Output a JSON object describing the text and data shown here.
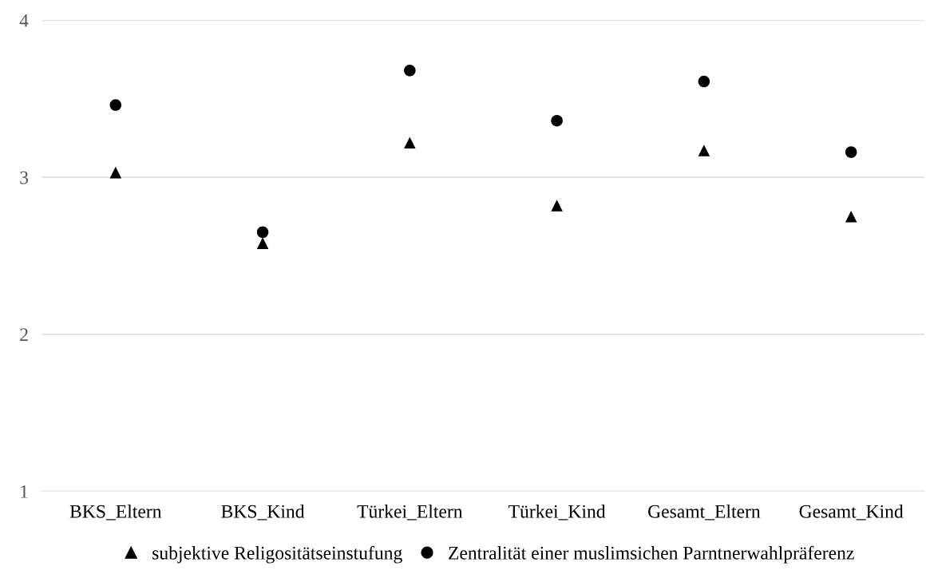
{
  "chart_data": {
    "type": "scatter",
    "categories": [
      "BKS_Eltern",
      "BKS_Kind",
      "Türkei_Eltern",
      "Türkei_Kind",
      "Gesamt_Eltern",
      "Gesamt_Kind"
    ],
    "series": [
      {
        "name": "subjektive Religositätseinstufung",
        "color": "#000000",
        "marker": "triangle",
        "values": [
          3.03,
          2.58,
          3.22,
          2.82,
          3.17,
          2.75
        ]
      },
      {
        "name": "Zentralität einer muslimsichen Parntnerwahlpräferenz",
        "color": "#000000",
        "marker": "circle",
        "values": [
          3.46,
          2.65,
          3.68,
          3.36,
          3.61,
          3.16
        ]
      }
    ],
    "ylim": [
      1,
      4
    ],
    "yticks": [
      1,
      2,
      3,
      4
    ],
    "grid": "y",
    "legend": "bottom"
  }
}
